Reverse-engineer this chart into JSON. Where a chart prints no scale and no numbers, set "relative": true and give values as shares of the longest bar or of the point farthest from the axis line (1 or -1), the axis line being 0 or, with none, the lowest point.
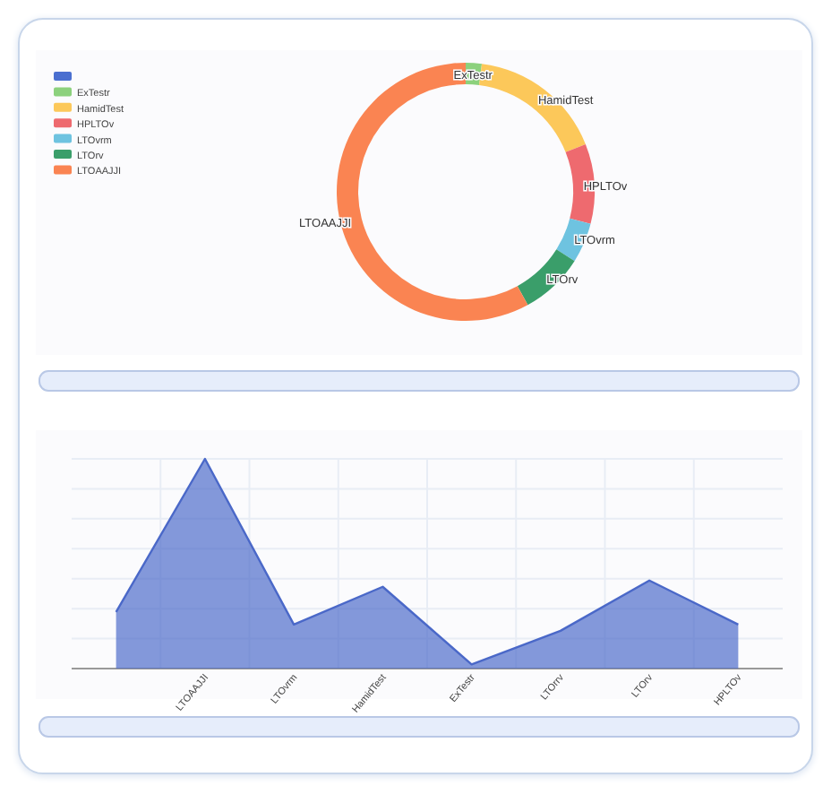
{
  "chart_data": [
    {
      "type": "donut",
      "categories": [
        null,
        "ExTestr",
        "HamidTest",
        "HPLTOv",
        "LTOvrm",
        "LTOrv",
        "LTOAAJJI"
      ],
      "values": [
        0,
        2,
        17,
        10,
        5,
        8,
        58
      ],
      "colors": [
        "#4a6fd0",
        "#8cd17d",
        "#fcc85a",
        "#ee6a6f",
        "#6ec3e0",
        "#3a9e6a",
        "#fa8452"
      ],
      "legend": "top left"
    },
    {
      "type": "area",
      "categories": [
        null,
        "LTOAAJJI",
        "LTOvrm",
        "HamidTest",
        "ExTestr",
        "LTOrrv",
        "LTOrv",
        "HPLTOv"
      ],
      "relative": true,
      "grid": true,
      "series": [
        {
          "color": "#4a68c8",
          "values": [
            0.27,
            1,
            0.21,
            0.39,
            0.02,
            0.18,
            0.42,
            0.21
          ]
        }
      ]
    }
  ]
}
